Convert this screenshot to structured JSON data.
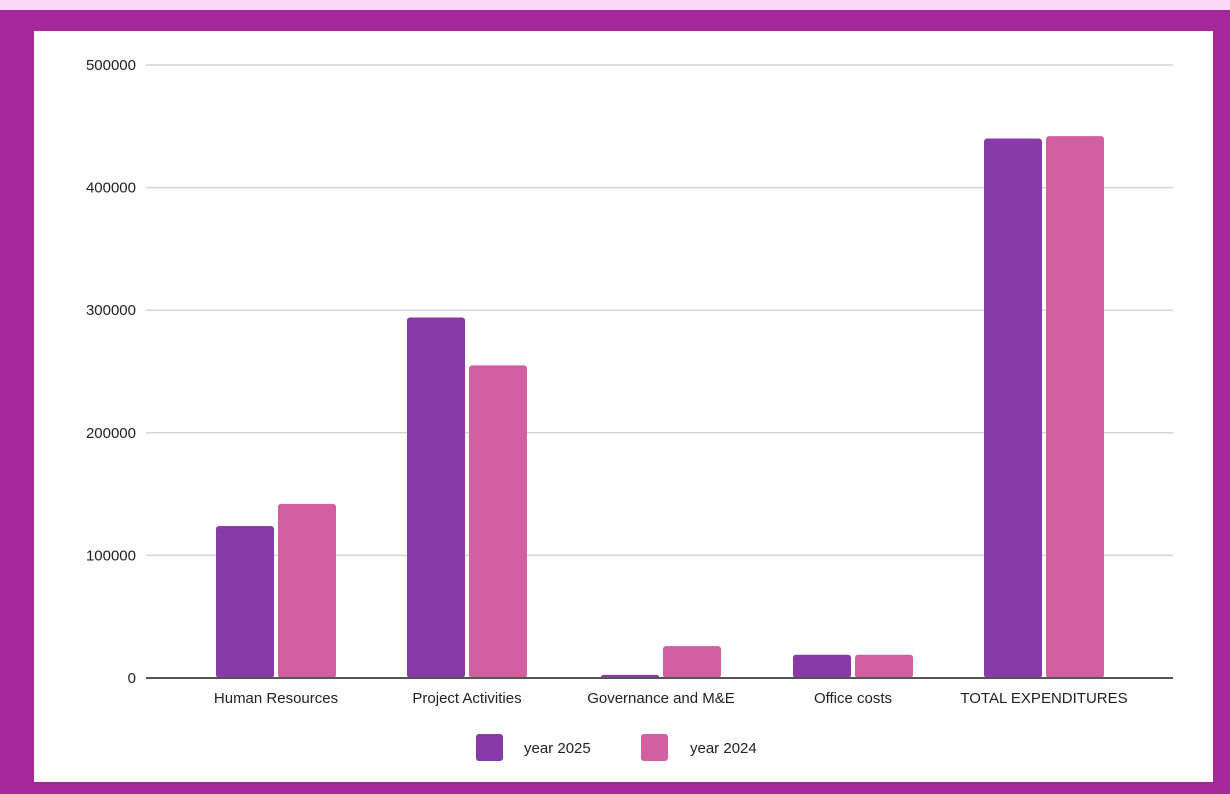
{
  "chart_data": {
    "type": "bar",
    "title": "",
    "xlabel": "",
    "ylabel": "",
    "ylim": [
      0,
      500000
    ],
    "yticks": [
      0,
      100000,
      200000,
      300000,
      400000,
      500000
    ],
    "grid": true,
    "legend_position": "bottom",
    "categories": [
      "Human Resources",
      "Project Activities",
      "Governance and M&E",
      "Office costs",
      "TOTAL EXPENDITURES"
    ],
    "series": [
      {
        "name": "year 2025",
        "color": "#883ba8",
        "values": [
          124000,
          294000,
          2500,
          19000,
          440000
        ]
      },
      {
        "name": "year 2024",
        "color": "#d25f9f",
        "values": [
          142000,
          255000,
          26000,
          19000,
          442000
        ]
      }
    ]
  },
  "theme": {
    "background": "#f9d9f5",
    "frame": "#a4289a",
    "panel": "#ffffff",
    "grid": "#d4d4d4",
    "axis": "#555555"
  }
}
